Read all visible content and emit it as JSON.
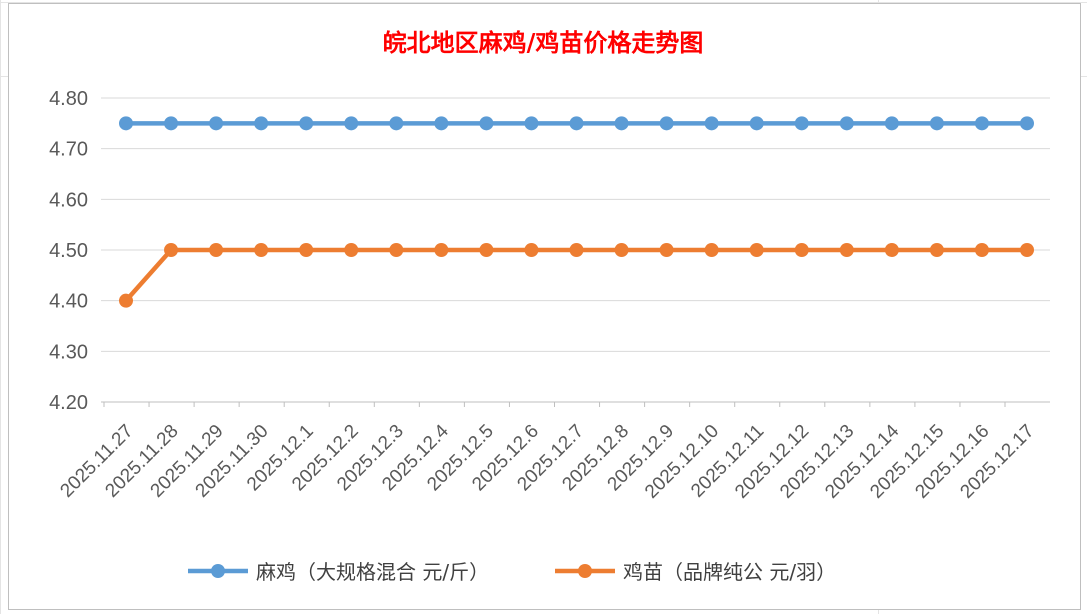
{
  "chart_data": {
    "type": "line",
    "title": "皖北地区麻鸡/鸡苗价格走势图",
    "xlabel": "",
    "ylabel": "",
    "categories": [
      "2025.11.27",
      "2025.11.28",
      "2025.11.29",
      "2025.11.30",
      "2025.12.1",
      "2025.12.2",
      "2025.12.3",
      "2025.12.4",
      "2025.12.5",
      "2025.12.6",
      "2025.12.7",
      "2025.12.8",
      "2025.12.9",
      "2025.12.10",
      "2025.12.11",
      "2025.12.12",
      "2025.12.13",
      "2025.12.14",
      "2025.12.15",
      "2025.12.16",
      "2025.12.17"
    ],
    "ylim": [
      4.15,
      4.8
    ],
    "yticks": [
      "4.80",
      "4.70",
      "4.60",
      "4.50",
      "4.40",
      "4.30",
      "4.20"
    ],
    "grid": true,
    "legend_position": "bottom",
    "series": [
      {
        "name": "麻鸡（大规格混合 元/斤）",
        "color": "#5b9bd5",
        "values": [
          4.75,
          4.75,
          4.75,
          4.75,
          4.75,
          4.75,
          4.75,
          4.75,
          4.75,
          4.75,
          4.75,
          4.75,
          4.75,
          4.75,
          4.75,
          4.75,
          4.75,
          4.75,
          4.75,
          4.75,
          4.75
        ]
      },
      {
        "name": "鸡苗（品牌纯公 元/羽）",
        "color": "#ed7d31",
        "values": [
          4.4,
          4.5,
          4.5,
          4.5,
          4.5,
          4.5,
          4.5,
          4.5,
          4.5,
          4.5,
          4.5,
          4.5,
          4.5,
          4.5,
          4.5,
          4.5,
          4.5,
          4.5,
          4.5,
          4.5,
          4.5
        ]
      }
    ]
  }
}
